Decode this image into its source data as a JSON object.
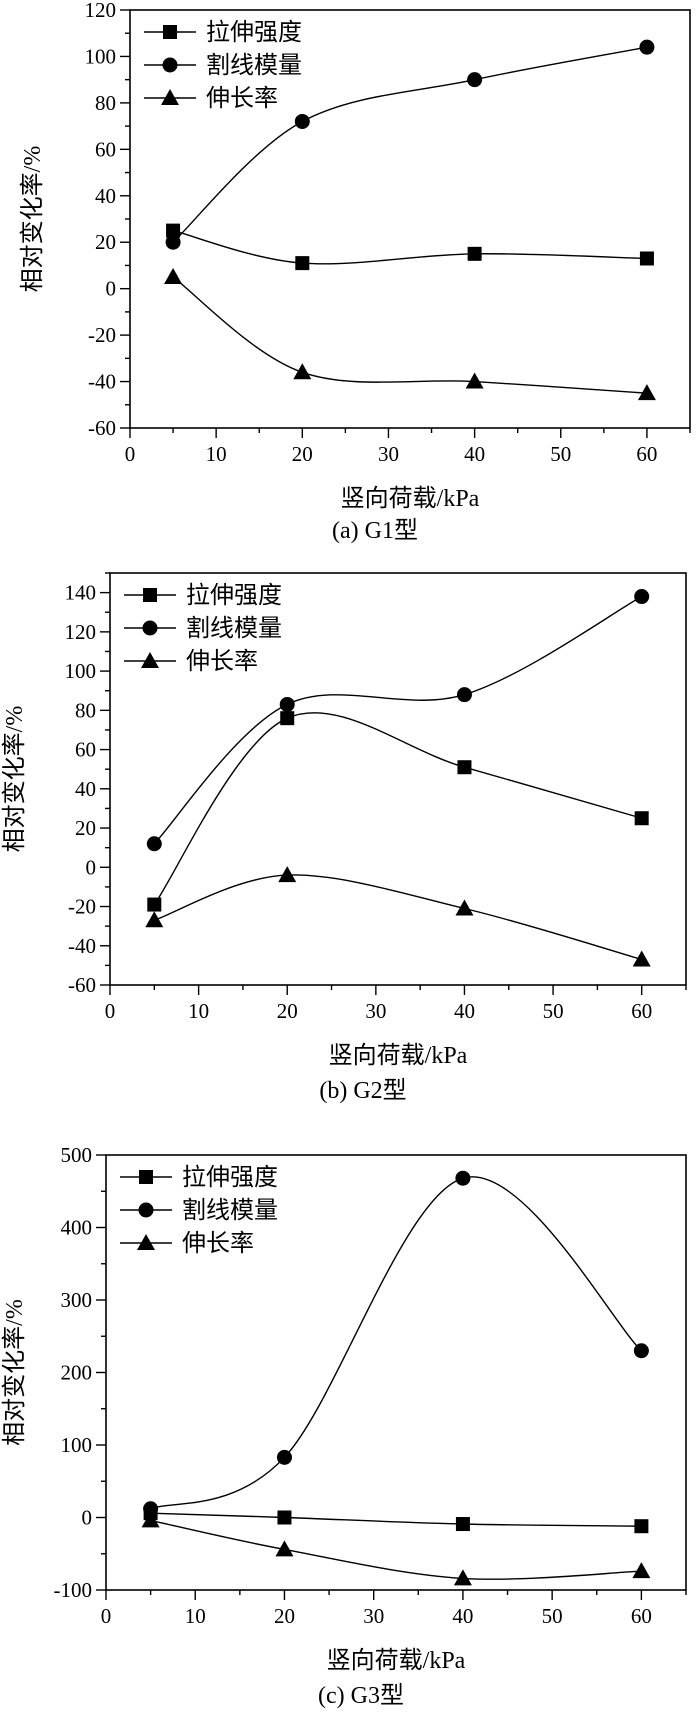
{
  "chart_data": [
    {
      "type": "line",
      "caption": "(a) G1型",
      "xlabel": "竖向荷载/kPa",
      "ylabel": "相对变化率/%",
      "xlim": [
        0,
        65
      ],
      "ylim": [
        -60,
        120
      ],
      "xticks": [
        0,
        10,
        20,
        30,
        40,
        50,
        60
      ],
      "yticks": [
        -60,
        -40,
        -20,
        0,
        20,
        40,
        60,
        80,
        100,
        120
      ],
      "legend_position": "top-left",
      "x": [
        5,
        20,
        40,
        60
      ],
      "series": [
        {
          "name": "拉伸强度",
          "marker": "square",
          "values": [
            25,
            11,
            15,
            13
          ]
        },
        {
          "name": "割线模量",
          "marker": "circle",
          "values": [
            20,
            72,
            90,
            104
          ]
        },
        {
          "name": "伸长率",
          "marker": "triangle",
          "values": [
            5,
            -36,
            -40,
            -45
          ]
        }
      ]
    },
    {
      "type": "line",
      "caption": "(b) G2型",
      "xlabel": "竖向荷载/kPa",
      "ylabel": "相对变化率/%",
      "xlim": [
        0,
        65
      ],
      "ylim": [
        -60,
        150
      ],
      "xticks": [
        0,
        10,
        20,
        30,
        40,
        50,
        60
      ],
      "yticks": [
        -60,
        -40,
        -20,
        0,
        20,
        40,
        60,
        80,
        100,
        120,
        140
      ],
      "legend_position": "top-left",
      "x": [
        5,
        20,
        40,
        60
      ],
      "series": [
        {
          "name": "拉伸强度",
          "marker": "square",
          "values": [
            -19,
            76,
            51,
            25
          ]
        },
        {
          "name": "割线模量",
          "marker": "circle",
          "values": [
            12,
            83,
            88,
            138
          ]
        },
        {
          "name": "伸长率",
          "marker": "triangle",
          "values": [
            -27,
            -4,
            -21,
            -47
          ]
        }
      ]
    },
    {
      "type": "line",
      "caption": "(c) G3型",
      "xlabel": "竖向荷载/kPa",
      "ylabel": "相对变化率/%",
      "xlim": [
        0,
        65
      ],
      "ylim": [
        -100,
        500
      ],
      "xticks": [
        0,
        10,
        20,
        30,
        40,
        50,
        60
      ],
      "yticks": [
        -100,
        0,
        100,
        200,
        300,
        400,
        500
      ],
      "legend_position": "top-left",
      "x": [
        5,
        20,
        40,
        60
      ],
      "series": [
        {
          "name": "拉伸强度",
          "marker": "square",
          "values": [
            6,
            0,
            -9,
            -12
          ]
        },
        {
          "name": "割线模量",
          "marker": "circle",
          "values": [
            12,
            83,
            468,
            230
          ]
        },
        {
          "name": "伸长率",
          "marker": "triangle",
          "values": [
            -4,
            -44,
            -84,
            -74
          ]
        }
      ]
    }
  ]
}
